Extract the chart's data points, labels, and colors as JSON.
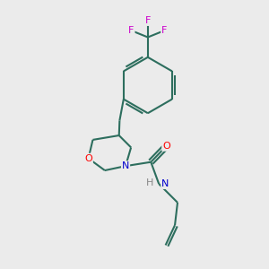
{
  "background_color": "#ebebeb",
  "bond_color": "#2d6e5e",
  "atom_colors": {
    "O": "#ff0000",
    "N": "#0000cc",
    "F": "#cc00cc",
    "H": "#888888",
    "C": "#000000"
  },
  "bond_width": 1.5,
  "figsize": [
    3.0,
    3.0
  ],
  "dpi": 100,
  "xlim": [
    0,
    10
  ],
  "ylim": [
    0,
    10
  ]
}
